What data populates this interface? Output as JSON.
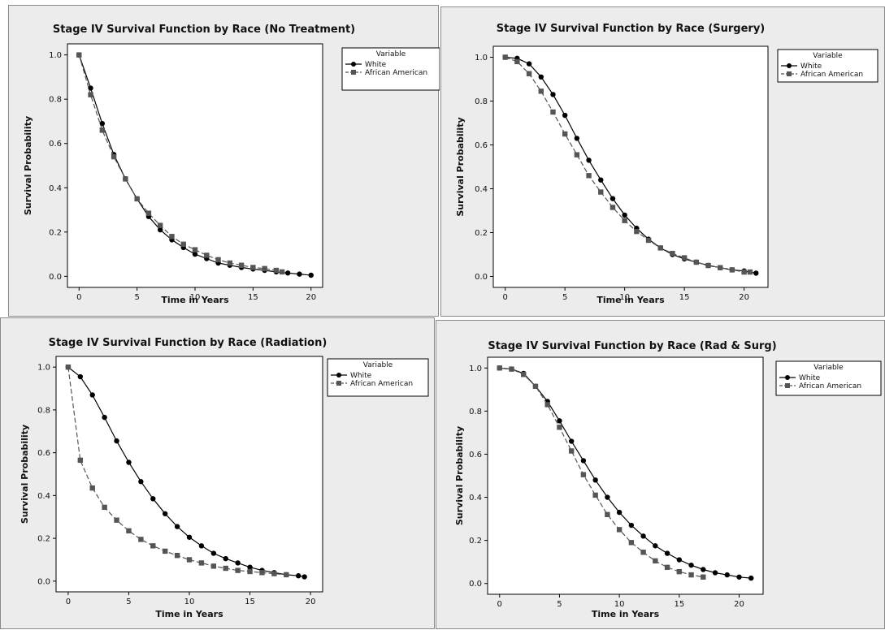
{
  "chart_data": [
    {
      "type": "line",
      "title": "Stage IV Survival Function by Race (No Treatment)",
      "xlabel": "Time in Years",
      "ylabel": "Survival Probability",
      "xlim": [
        -1,
        21
      ],
      "ylim": [
        -0.05,
        1.05
      ],
      "xticks": [
        0,
        5,
        10,
        15,
        20
      ],
      "yticks": [
        0.0,
        0.2,
        0.4,
        0.6,
        0.8,
        1.0
      ],
      "legend_title": "Variable",
      "legend_position": "right",
      "series": [
        {
          "name": "White",
          "marker": "circle",
          "line": "solid",
          "color": "#000000",
          "points": [
            [
              0,
              1.0
            ],
            [
              1,
              0.85
            ],
            [
              2,
              0.69
            ],
            [
              3,
              0.55
            ],
            [
              4,
              0.44
            ],
            [
              5,
              0.35
            ],
            [
              6,
              0.27
            ],
            [
              7,
              0.21
            ],
            [
              8,
              0.165
            ],
            [
              9,
              0.13
            ],
            [
              10,
              0.1
            ],
            [
              11,
              0.08
            ],
            [
              12,
              0.06
            ],
            [
              13,
              0.05
            ],
            [
              14,
              0.04
            ],
            [
              15,
              0.033
            ],
            [
              16,
              0.027
            ],
            [
              17,
              0.02
            ],
            [
              18,
              0.015
            ],
            [
              19,
              0.01
            ],
            [
              20,
              0.005
            ]
          ]
        },
        {
          "name": "African American",
          "marker": "square",
          "line": "dashed",
          "color": "#555555",
          "points": [
            [
              0,
              1.0
            ],
            [
              1,
              0.82
            ],
            [
              2,
              0.66
            ],
            [
              3,
              0.54
            ],
            [
              4,
              0.44
            ],
            [
              5,
              0.35
            ],
            [
              6,
              0.285
            ],
            [
              7,
              0.23
            ],
            [
              8,
              0.18
            ],
            [
              9,
              0.145
            ],
            [
              10,
              0.12
            ],
            [
              11,
              0.095
            ],
            [
              12,
              0.075
            ],
            [
              13,
              0.06
            ],
            [
              14,
              0.05
            ],
            [
              15,
              0.04
            ],
            [
              16,
              0.035
            ],
            [
              17,
              0.027
            ],
            [
              17.5,
              0.02
            ]
          ]
        }
      ]
    },
    {
      "type": "line",
      "title": "Stage IV Survival Function by Race (Surgery)",
      "xlabel": "Time in Years",
      "ylabel": "Survival Probability",
      "xlim": [
        -1,
        22
      ],
      "ylim": [
        -0.05,
        1.05
      ],
      "xticks": [
        0,
        5,
        10,
        15,
        20
      ],
      "yticks": [
        0.0,
        0.2,
        0.4,
        0.6,
        0.8,
        1.0
      ],
      "legend_title": "Variable",
      "legend_position": "right",
      "series": [
        {
          "name": "White",
          "marker": "circle",
          "line": "solid",
          "color": "#000000",
          "points": [
            [
              0,
              1.0
            ],
            [
              1,
              0.995
            ],
            [
              2,
              0.97
            ],
            [
              3,
              0.91
            ],
            [
              4,
              0.83
            ],
            [
              5,
              0.735
            ],
            [
              6,
              0.63
            ],
            [
              7,
              0.53
            ],
            [
              8,
              0.44
            ],
            [
              9,
              0.355
            ],
            [
              10,
              0.28
            ],
            [
              11,
              0.22
            ],
            [
              12,
              0.17
            ],
            [
              13,
              0.13
            ],
            [
              14,
              0.1
            ],
            [
              15,
              0.08
            ],
            [
              16,
              0.065
            ],
            [
              17,
              0.05
            ],
            [
              18,
              0.04
            ],
            [
              19,
              0.03
            ],
            [
              20,
              0.025
            ],
            [
              21,
              0.015
            ]
          ]
        },
        {
          "name": "African American",
          "marker": "square",
          "line": "dashed",
          "color": "#555555",
          "points": [
            [
              0,
              1.0
            ],
            [
              1,
              0.98
            ],
            [
              2,
              0.925
            ],
            [
              3,
              0.845
            ],
            [
              4,
              0.75
            ],
            [
              5,
              0.65
            ],
            [
              6,
              0.555
            ],
            [
              7,
              0.46
            ],
            [
              8,
              0.385
            ],
            [
              9,
              0.315
            ],
            [
              10,
              0.255
            ],
            [
              11,
              0.205
            ],
            [
              12,
              0.165
            ],
            [
              13,
              0.13
            ],
            [
              14,
              0.105
            ],
            [
              15,
              0.085
            ],
            [
              16,
              0.065
            ],
            [
              17,
              0.05
            ],
            [
              18,
              0.04
            ],
            [
              19,
              0.03
            ],
            [
              20,
              0.02
            ],
            [
              20.5,
              0.02
            ]
          ]
        }
      ]
    },
    {
      "type": "line",
      "title": "Stage IV Survival Function by Race (Radiation)",
      "xlabel": "Time in Years",
      "ylabel": "Survival Probability",
      "xlim": [
        -1,
        21
      ],
      "ylim": [
        -0.05,
        1.05
      ],
      "xticks": [
        0,
        5,
        10,
        15,
        20
      ],
      "yticks": [
        0.0,
        0.2,
        0.4,
        0.6,
        0.8,
        1.0
      ],
      "legend_title": "Variable",
      "legend_position": "right",
      "series": [
        {
          "name": "White",
          "marker": "circle",
          "line": "solid",
          "color": "#000000",
          "points": [
            [
              0,
              1.0
            ],
            [
              1,
              0.955
            ],
            [
              2,
              0.87
            ],
            [
              3,
              0.765
            ],
            [
              4,
              0.655
            ],
            [
              5,
              0.555
            ],
            [
              6,
              0.465
            ],
            [
              7,
              0.385
            ],
            [
              8,
              0.315
            ],
            [
              9,
              0.255
            ],
            [
              10,
              0.205
            ],
            [
              11,
              0.165
            ],
            [
              12,
              0.13
            ],
            [
              13,
              0.105
            ],
            [
              14,
              0.085
            ],
            [
              15,
              0.065
            ],
            [
              16,
              0.05
            ],
            [
              17,
              0.04
            ],
            [
              18,
              0.03
            ],
            [
              19,
              0.025
            ],
            [
              19.5,
              0.02
            ]
          ]
        },
        {
          "name": "African American",
          "marker": "square",
          "line": "dashed",
          "color": "#555555",
          "points": [
            [
              0,
              1.0
            ],
            [
              1,
              0.565
            ],
            [
              2,
              0.435
            ],
            [
              3,
              0.345
            ],
            [
              4,
              0.285
            ],
            [
              5,
              0.235
            ],
            [
              6,
              0.195
            ],
            [
              7,
              0.165
            ],
            [
              8,
              0.14
            ],
            [
              9,
              0.12
            ],
            [
              10,
              0.1
            ],
            [
              11,
              0.085
            ],
            [
              12,
              0.07
            ],
            [
              13,
              0.06
            ],
            [
              14,
              0.05
            ],
            [
              15,
              0.045
            ],
            [
              16,
              0.04
            ],
            [
              17,
              0.035
            ],
            [
              18,
              0.03
            ]
          ]
        }
      ]
    },
    {
      "type": "line",
      "title": "Stage IV Survival Function by Race (Rad & Surg)",
      "xlabel": "Time in Years",
      "ylabel": "Survival Probability",
      "xlim": [
        -1,
        22
      ],
      "ylim": [
        -0.05,
        1.05
      ],
      "xticks": [
        0,
        5,
        10,
        15,
        20
      ],
      "yticks": [
        0.0,
        0.2,
        0.4,
        0.6,
        0.8,
        1.0
      ],
      "legend_title": "Variable",
      "legend_position": "right",
      "series": [
        {
          "name": "White",
          "marker": "circle",
          "line": "solid",
          "color": "#000000",
          "points": [
            [
              0,
              1.0
            ],
            [
              1,
              0.995
            ],
            [
              2,
              0.975
            ],
            [
              3,
              0.915
            ],
            [
              4,
              0.845
            ],
            [
              5,
              0.755
            ],
            [
              6,
              0.66
            ],
            [
              7,
              0.57
            ],
            [
              8,
              0.48
            ],
            [
              9,
              0.4
            ],
            [
              10,
              0.33
            ],
            [
              11,
              0.27
            ],
            [
              12,
              0.22
            ],
            [
              13,
              0.175
            ],
            [
              14,
              0.14
            ],
            [
              15,
              0.11
            ],
            [
              16,
              0.085
            ],
            [
              17,
              0.065
            ],
            [
              18,
              0.05
            ],
            [
              19,
              0.04
            ],
            [
              20,
              0.03
            ],
            [
              21,
              0.025
            ]
          ]
        },
        {
          "name": "African American",
          "marker": "square",
          "line": "dashed",
          "color": "#555555",
          "points": [
            [
              0,
              1.0
            ],
            [
              1,
              0.995
            ],
            [
              2,
              0.97
            ],
            [
              3,
              0.915
            ],
            [
              4,
              0.83
            ],
            [
              5,
              0.725
            ],
            [
              6,
              0.615
            ],
            [
              7,
              0.505
            ],
            [
              8,
              0.41
            ],
            [
              9,
              0.32
            ],
            [
              10,
              0.25
            ],
            [
              11,
              0.19
            ],
            [
              12,
              0.145
            ],
            [
              13,
              0.105
            ],
            [
              14,
              0.075
            ],
            [
              15,
              0.055
            ],
            [
              16,
              0.04
            ],
            [
              17,
              0.03
            ]
          ]
        }
      ]
    }
  ]
}
